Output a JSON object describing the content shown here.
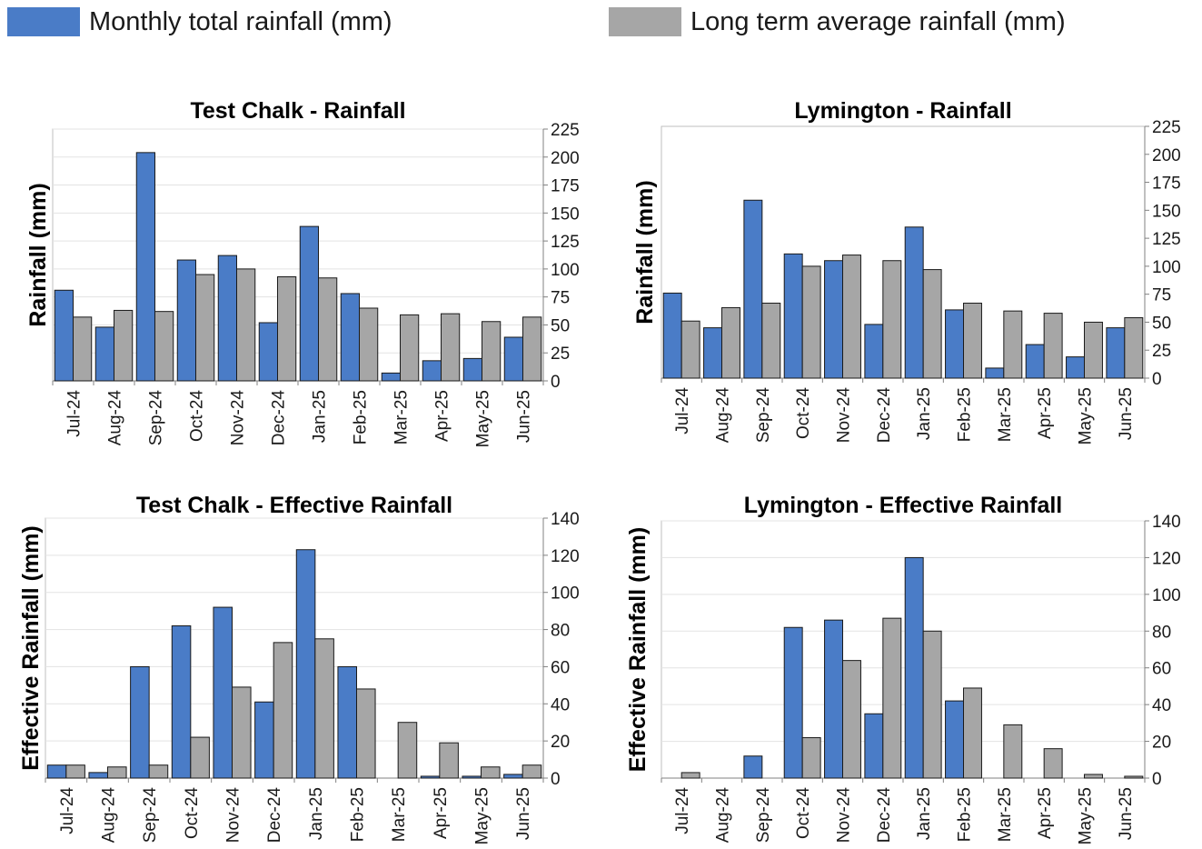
{
  "legend": [
    {
      "label": "Monthly total rainfall (mm)",
      "color": "#4a7cc7"
    },
    {
      "label": "Long term average rainfall (mm)",
      "color": "#a6a6a6"
    }
  ],
  "chart_data": [
    {
      "type": "bar",
      "title": "Test Chalk - Rainfall",
      "xlabel": "",
      "ylabel": "Rainfall (mm)",
      "ylim": [
        0,
        225
      ],
      "yticks": [
        0,
        25,
        50,
        75,
        100,
        125,
        150,
        175,
        200,
        225
      ],
      "categories": [
        "Jul-24",
        "Aug-24",
        "Sep-24",
        "Oct-24",
        "Nov-24",
        "Dec-24",
        "Jan-25",
        "Feb-25",
        "Mar-25",
        "Apr-25",
        "May-25",
        "Jun-25"
      ],
      "series": [
        {
          "name": "Monthly total rainfall (mm)",
          "values": [
            81,
            48,
            204,
            108,
            112,
            52,
            138,
            78,
            7,
            18,
            20,
            39
          ]
        },
        {
          "name": "Long term average rainfall (mm)",
          "values": [
            57,
            63,
            62,
            95,
            100,
            93,
            92,
            65,
            59,
            60,
            53,
            57
          ]
        }
      ],
      "grid": true,
      "legend": "top"
    },
    {
      "type": "bar",
      "title": "Lymington - Rainfall",
      "xlabel": "",
      "ylabel": "Rainfall (mm)",
      "ylim": [
        0,
        225
      ],
      "yticks": [
        0,
        25,
        50,
        75,
        100,
        125,
        150,
        175,
        200,
        225
      ],
      "categories": [
        "Jul-24",
        "Aug-24",
        "Sep-24",
        "Oct-24",
        "Nov-24",
        "Dec-24",
        "Jan-25",
        "Feb-25",
        "Mar-25",
        "Apr-25",
        "May-25",
        "Jun-25"
      ],
      "series": [
        {
          "name": "Monthly total rainfall (mm)",
          "values": [
            76,
            45,
            159,
            111,
            105,
            48,
            135,
            61,
            9,
            30,
            19,
            45
          ]
        },
        {
          "name": "Long term average rainfall (mm)",
          "values": [
            51,
            63,
            67,
            100,
            110,
            105,
            97,
            67,
            60,
            58,
            50,
            54
          ]
        }
      ],
      "grid": false,
      "legend": "top"
    },
    {
      "type": "bar",
      "title": "Test  Chalk - Effective Rainfall",
      "xlabel": "",
      "ylabel": "Effective Rainfall (mm)",
      "ylim": [
        0,
        140
      ],
      "yticks": [
        0,
        20,
        40,
        60,
        80,
        100,
        120,
        140
      ],
      "categories": [
        "Jul-24",
        "Aug-24",
        "Sep-24",
        "Oct-24",
        "Nov-24",
        "Dec-24",
        "Jan-25",
        "Feb-25",
        "Mar-25",
        "Apr-25",
        "May-25",
        "Jun-25"
      ],
      "series": [
        {
          "name": "Monthly total rainfall (mm)",
          "values": [
            7,
            3,
            60,
            82,
            92,
            41,
            123,
            60,
            0,
            1,
            1,
            2
          ]
        },
        {
          "name": "Long term average rainfall (mm)",
          "values": [
            7,
            6,
            7,
            22,
            49,
            73,
            75,
            48,
            30,
            19,
            6,
            7
          ]
        }
      ],
      "grid": true,
      "legend": "top"
    },
    {
      "type": "bar",
      "title": "Lymington - Effective Rainfall",
      "xlabel": "",
      "ylabel": "Effective Rainfall (mm)",
      "ylim": [
        0,
        140
      ],
      "yticks": [
        0,
        20,
        40,
        60,
        80,
        100,
        120,
        140
      ],
      "categories": [
        "Jul-24",
        "Aug-24",
        "Sep-24",
        "Oct-24",
        "Nov-24",
        "Dec-24",
        "Jan-25",
        "Feb-25",
        "Mar-25",
        "Apr-25",
        "May-25",
        "Jun-25"
      ],
      "series": [
        {
          "name": "Monthly total rainfall (mm)",
          "values": [
            0,
            0,
            12,
            82,
            86,
            35,
            120,
            42,
            0,
            0,
            0,
            0
          ]
        },
        {
          "name": "Long term average rainfall (mm)",
          "values": [
            3,
            0,
            0,
            22,
            64,
            87,
            80,
            49,
            29,
            16,
            2,
            1
          ]
        }
      ],
      "grid": true,
      "legend": "top"
    }
  ]
}
